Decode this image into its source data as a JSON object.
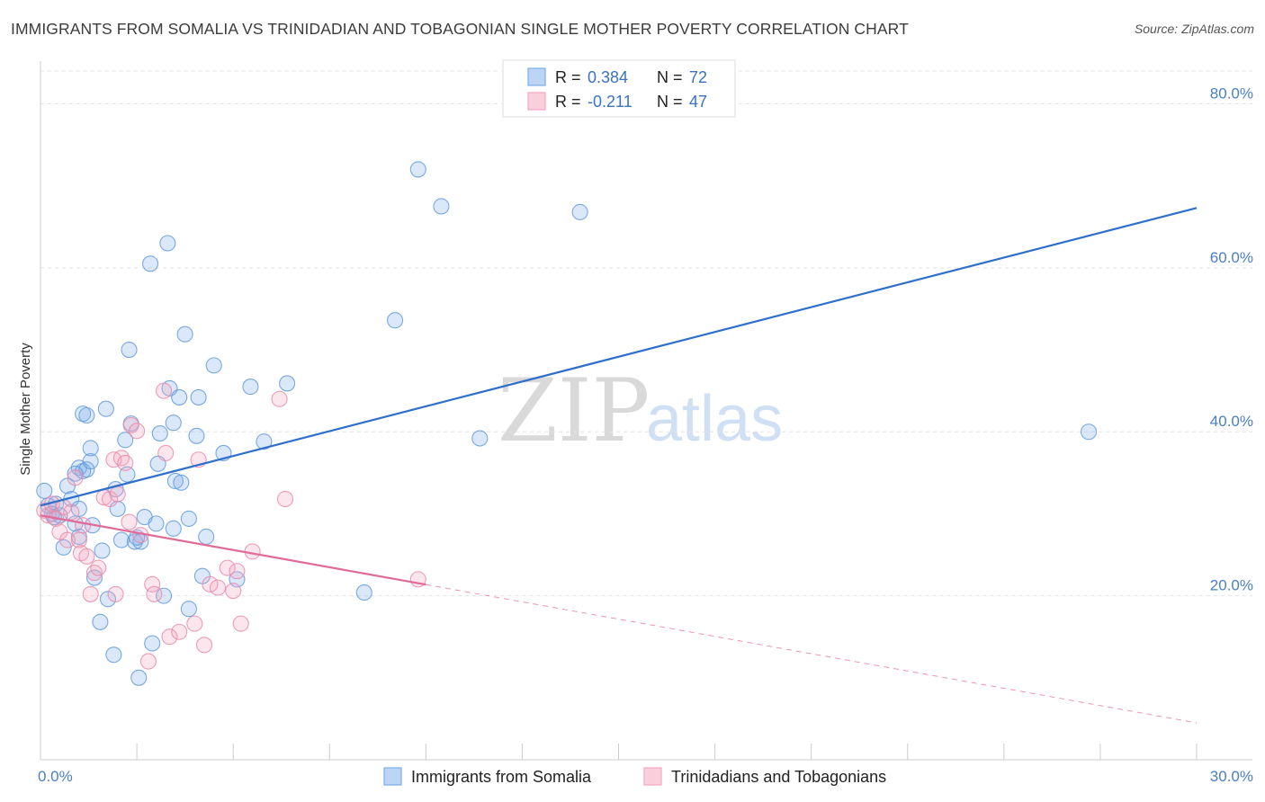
{
  "title": "IMMIGRANTS FROM SOMALIA VS TRINIDADIAN AND TOBAGONIAN SINGLE MOTHER POVERTY CORRELATION CHART",
  "source": "Source: ZipAtlas.com",
  "watermark": {
    "zip": "ZIP",
    "atlas": "atlas"
  },
  "colors": {
    "blue": "#7baee8",
    "blue_line": "#2f6fcc",
    "pink": "#f4a6c0",
    "pink_line": "#e06b98"
  },
  "legend": {
    "r_label": "R =",
    "n_label": "N =",
    "series": [
      {
        "r": "0.384",
        "n": "72"
      },
      {
        "r": "-0.211",
        "n": "47"
      }
    ]
  },
  "chart_data": {
    "type": "scatter",
    "title": "IMMIGRANTS FROM SOMALIA VS TRINIDADIAN AND TOBAGONIAN SINGLE MOTHER POVERTY CORRELATION CHART",
    "xlabel": "",
    "ylabel": "Single Mother Poverty",
    "xlim": [
      0,
      30
    ],
    "ylim": [
      0,
      84
    ],
    "x_tick_labels": [
      "0.0%",
      "30.0%"
    ],
    "y_ticks": [
      20,
      40,
      60,
      80
    ],
    "y_tick_labels": [
      "20.0%",
      "40.0%",
      "60.0%",
      "80.0%"
    ],
    "grid": true,
    "legend_position": "top-center",
    "series": [
      {
        "name": "Immigrants from Somalia",
        "color": "#7baee8",
        "trend": {
          "x": [
            0,
            30
          ],
          "y": [
            31.0,
            67.3
          ],
          "dashed_from": null
        },
        "points": [
          [
            0.1,
            32.8
          ],
          [
            0.2,
            31.0
          ],
          [
            0.3,
            30.0
          ],
          [
            0.35,
            29.6
          ],
          [
            0.4,
            31.2
          ],
          [
            0.5,
            29.8
          ],
          [
            0.6,
            25.9
          ],
          [
            0.7,
            33.4
          ],
          [
            0.8,
            31.8
          ],
          [
            0.9,
            28.8
          ],
          [
            1.0,
            27.2
          ],
          [
            1.0,
            30.6
          ],
          [
            1.0,
            35.6
          ],
          [
            1.1,
            35.2
          ],
          [
            1.2,
            35.4
          ],
          [
            1.1,
            42.2
          ],
          [
            1.2,
            42.0
          ],
          [
            1.3,
            36.4
          ],
          [
            1.3,
            38.0
          ],
          [
            1.35,
            28.6
          ],
          [
            1.4,
            22.2
          ],
          [
            1.55,
            16.8
          ],
          [
            1.6,
            25.5
          ],
          [
            1.7,
            42.8
          ],
          [
            1.75,
            19.6
          ],
          [
            1.9,
            12.8
          ],
          [
            1.95,
            33.0
          ],
          [
            2.0,
            30.6
          ],
          [
            2.1,
            26.8
          ],
          [
            2.2,
            39.0
          ],
          [
            2.25,
            34.8
          ],
          [
            2.3,
            50.0
          ],
          [
            2.35,
            41.0
          ],
          [
            2.45,
            26.6
          ],
          [
            2.55,
            10.0
          ],
          [
            2.6,
            26.6
          ],
          [
            2.7,
            29.6
          ],
          [
            2.85,
            60.5
          ],
          [
            2.9,
            14.2
          ],
          [
            3.0,
            28.8
          ],
          [
            3.05,
            36.1
          ],
          [
            3.1,
            39.8
          ],
          [
            3.2,
            20.0
          ],
          [
            3.3,
            63.0
          ],
          [
            3.35,
            45.3
          ],
          [
            3.45,
            28.2
          ],
          [
            3.5,
            34.0
          ],
          [
            3.6,
            44.2
          ],
          [
            3.65,
            33.8
          ],
          [
            3.75,
            51.9
          ],
          [
            3.85,
            29.4
          ],
          [
            3.85,
            18.4
          ],
          [
            4.05,
            39.5
          ],
          [
            4.1,
            44.2
          ],
          [
            4.2,
            22.4
          ],
          [
            4.3,
            27.2
          ],
          [
            4.5,
            48.1
          ],
          [
            4.75,
            37.4
          ],
          [
            5.1,
            22.0
          ],
          [
            5.45,
            45.5
          ],
          [
            5.8,
            38.8
          ],
          [
            6.4,
            45.9
          ],
          [
            8.4,
            20.4
          ],
          [
            9.2,
            53.6
          ],
          [
            9.8,
            72.0
          ],
          [
            10.4,
            67.5
          ],
          [
            11.4,
            39.2
          ],
          [
            14.0,
            66.8
          ],
          [
            27.2,
            40.0
          ],
          [
            0.9,
            34.9
          ],
          [
            3.45,
            41.1
          ],
          [
            2.5,
            27.1
          ]
        ]
      },
      {
        "name": "Trinidadians and Tobagonians",
        "color": "#f4a6c0",
        "trend": {
          "x": [
            0,
            30
          ],
          "y": [
            29.8,
            4.5
          ],
          "solid_until": 10.0
        },
        "points": [
          [
            0.1,
            30.4
          ],
          [
            0.2,
            29.8
          ],
          [
            0.3,
            31.2
          ],
          [
            0.4,
            29.4
          ],
          [
            0.5,
            27.8
          ],
          [
            0.6,
            30.8
          ],
          [
            0.7,
            26.8
          ],
          [
            0.8,
            30.2
          ],
          [
            0.9,
            34.4
          ],
          [
            1.0,
            26.8
          ],
          [
            1.05,
            25.2
          ],
          [
            1.1,
            28.6
          ],
          [
            1.2,
            24.8
          ],
          [
            1.3,
            20.2
          ],
          [
            1.4,
            22.8
          ],
          [
            1.5,
            23.4
          ],
          [
            1.65,
            32.0
          ],
          [
            1.8,
            31.8
          ],
          [
            1.9,
            36.6
          ],
          [
            1.95,
            20.2
          ],
          [
            2.0,
            32.4
          ],
          [
            2.1,
            36.8
          ],
          [
            2.2,
            36.2
          ],
          [
            2.3,
            29.0
          ],
          [
            2.35,
            40.8
          ],
          [
            2.5,
            40.1
          ],
          [
            2.6,
            27.4
          ],
          [
            2.8,
            12.0
          ],
          [
            2.9,
            21.4
          ],
          [
            2.95,
            20.2
          ],
          [
            3.2,
            45.0
          ],
          [
            3.25,
            37.4
          ],
          [
            3.35,
            15.0
          ],
          [
            3.6,
            15.6
          ],
          [
            4.0,
            16.6
          ],
          [
            4.1,
            36.6
          ],
          [
            4.25,
            14.0
          ],
          [
            4.4,
            21.4
          ],
          [
            4.6,
            21.0
          ],
          [
            4.85,
            23.4
          ],
          [
            5.0,
            20.6
          ],
          [
            5.1,
            23.0
          ],
          [
            5.2,
            16.6
          ],
          [
            5.5,
            25.4
          ],
          [
            6.2,
            44.0
          ],
          [
            6.35,
            31.8
          ],
          [
            9.8,
            22.0
          ]
        ]
      }
    ]
  },
  "bottom_legend": [
    "Immigrants from Somalia",
    "Trinidadians and Tobagonians"
  ]
}
